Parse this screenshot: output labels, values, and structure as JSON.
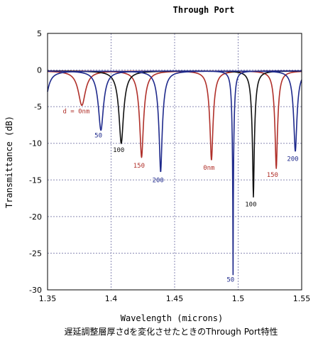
{
  "chart_data": {
    "type": "line",
    "title": "Through Port",
    "xlabel": "Wavelength (microns)",
    "ylabel": "Transmittance (dB)",
    "caption": "遅延調整層厚さdを変化させたときのThrough Port特性",
    "xlim": [
      1.35,
      1.55
    ],
    "ylim": [
      -30,
      5
    ],
    "xticks": [
      1.35,
      1.4,
      1.45,
      1.5,
      1.55
    ],
    "xtick_labels": [
      "1.35",
      "1.4",
      "1.45",
      "1.5",
      "1.55"
    ],
    "yticks": [
      5,
      0,
      -5,
      -10,
      -15,
      -20,
      -25,
      -30
    ],
    "ytick_labels": [
      "5",
      "0",
      "-5",
      "-10",
      "-15",
      "-20",
      "-25",
      "-30"
    ],
    "grid": true,
    "series_colors": {
      "d0": "#b0302a",
      "d50": "#1f2a8c",
      "d100": "#111111",
      "d150": "#b0302a",
      "d200": "#1f2a8c"
    },
    "dips": [
      {
        "series": "d0",
        "center": 1.377,
        "depth": -4.7,
        "width": 0.0045
      },
      {
        "series": "d50",
        "center": 1.392,
        "depth": -8.1,
        "width": 0.004
      },
      {
        "series": "d100",
        "center": 1.408,
        "depth": -9.9,
        "width": 0.004
      },
      {
        "series": "d150",
        "center": 1.424,
        "depth": -11.8,
        "width": 0.0038
      },
      {
        "series": "d200",
        "center": 1.439,
        "depth": -13.8,
        "width": 0.0036
      },
      {
        "series": "d0",
        "center": 1.479,
        "depth": -12.2,
        "width": 0.0032
      },
      {
        "series": "d50",
        "center": 1.496,
        "depth": -27.8,
        "width": 0.0018
      },
      {
        "series": "d100",
        "center": 1.512,
        "depth": -17.2,
        "width": 0.0026
      },
      {
        "series": "d150",
        "center": 1.53,
        "depth": -13.3,
        "width": 0.0028
      },
      {
        "series": "d200",
        "center": 1.545,
        "depth": -11.0,
        "width": 0.003
      },
      {
        "series": "d200",
        "center": 1.347,
        "depth": -6.0,
        "width": 0.004
      }
    ],
    "annotations": [
      {
        "text": "d = 0nm",
        "x": 1.362,
        "y": -5.9,
        "color": "#b0302a"
      },
      {
        "text": "50",
        "x": 1.39,
        "y": -9.2,
        "color": "#1f2a8c"
      },
      {
        "text": "100",
        "x": 1.406,
        "y": -11.2,
        "color": "#111111"
      },
      {
        "text": "150",
        "x": 1.422,
        "y": -13.3,
        "color": "#b0302a"
      },
      {
        "text": "200",
        "x": 1.437,
        "y": -15.3,
        "color": "#1f2a8c"
      },
      {
        "text": "0nm",
        "x": 1.477,
        "y": -13.6,
        "color": "#b0302a"
      },
      {
        "text": "50",
        "x": 1.494,
        "y": -28.9,
        "color": "#1f2a8c"
      },
      {
        "text": "100",
        "x": 1.51,
        "y": -18.6,
        "color": "#111111"
      },
      {
        "text": "150",
        "x": 1.527,
        "y": -14.6,
        "color": "#b0302a"
      },
      {
        "text": "200",
        "x": 1.543,
        "y": -12.4,
        "color": "#1f2a8c"
      }
    ]
  }
}
